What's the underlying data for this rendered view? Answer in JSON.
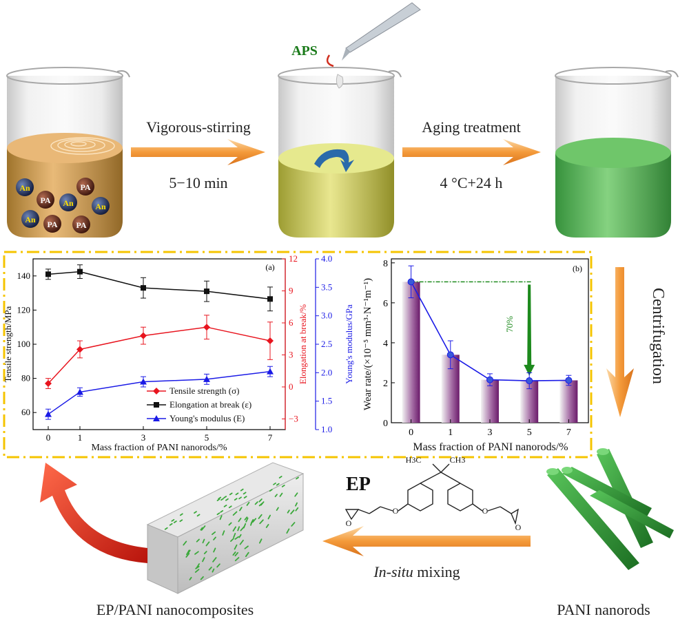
{
  "steps": {
    "stir_label": "Vigorous-stirring",
    "stir_time": "5−10 min",
    "aging_label": "Aging treatment",
    "aging_time": "4 °C+24 h",
    "aps": "APS",
    "centrifugation": "Centrifugation",
    "insitu_italic": "In-situ",
    "insitu_rest": " mixing",
    "ep_title": "EP",
    "ep_h3c": "H3C",
    "ep_ch3": "CH3",
    "ep_o": "O",
    "product_left": "EP/PANI nanocomposites",
    "product_right": "PANI nanorods",
    "monomer_an": "An",
    "monomer_pa": "PA"
  },
  "colors": {
    "arrow": "#f0a040",
    "dash_border": "#f5c400",
    "tensile": "#e8141e",
    "elongation": "#111111",
    "modulus": "#1a1ae6",
    "wear_line": "#1a1ae6",
    "bar": "#7a1f7a",
    "pani_green": "#2e9a32",
    "reduction_green": "#1d8a1d"
  },
  "chart_data": [
    {
      "type": "line",
      "panel": "(a)",
      "xlabel": "Mass fraction of PANI nanorods/%",
      "ylabel_left": "Tensile strength/MPa",
      "ylabel_right1": "Elongation at break/%",
      "ylabel_right2": "Young's modulus/GPa",
      "x": [
        0,
        1,
        3,
        5,
        7
      ],
      "x_ticks": [
        "0",
        "1",
        "3",
        "5",
        "7"
      ],
      "ylim_left": [
        50,
        150
      ],
      "y_ticks_left": [
        "60",
        "80",
        "100",
        "120",
        "140"
      ],
      "ylim_right1": [
        -4,
        12
      ],
      "y_ticks_right1": [
        "−3",
        "0",
        "3",
        "6",
        "9",
        "12"
      ],
      "ylim_right2": [
        1.0,
        4.0
      ],
      "y_ticks_right2": [
        "1.0",
        "1.5",
        "2.0",
        "2.5",
        "3.0",
        "3.5",
        "4.0"
      ],
      "series": [
        {
          "name": "Tensile strength (σ)",
          "values": [
            77,
            97,
            105,
            110,
            102
          ],
          "errors": [
            3,
            5,
            5,
            7,
            11
          ]
        },
        {
          "name": "Elongation at break (ε)",
          "values": [
            141,
            142.5,
            133,
            131,
            126.5
          ],
          "errors": [
            3,
            4,
            6,
            6,
            7
          ]
        },
        {
          "name": "Young's modulus (E)",
          "values": [
            59,
            72,
            78,
            79.5,
            84
          ],
          "errors": [
            3,
            2.5,
            3,
            3,
            3
          ]
        }
      ]
    },
    {
      "type": "bar",
      "panel": "(b)",
      "xlabel": "Mass fraction of PANI nanorods/%",
      "ylabel": "Wear rate/(×10⁻⁵ mm³·N⁻¹m⁻¹)",
      "categories": [
        "0",
        "1",
        "3",
        "5",
        "7"
      ],
      "values": [
        7.05,
        3.4,
        2.15,
        2.1,
        2.12
      ],
      "errors": [
        0.8,
        0.7,
        0.3,
        0.4,
        0.25
      ],
      "ylim": [
        0,
        8.2
      ],
      "y_ticks": [
        "0",
        "2",
        "4",
        "6",
        "8"
      ],
      "annotation": "70%"
    }
  ]
}
